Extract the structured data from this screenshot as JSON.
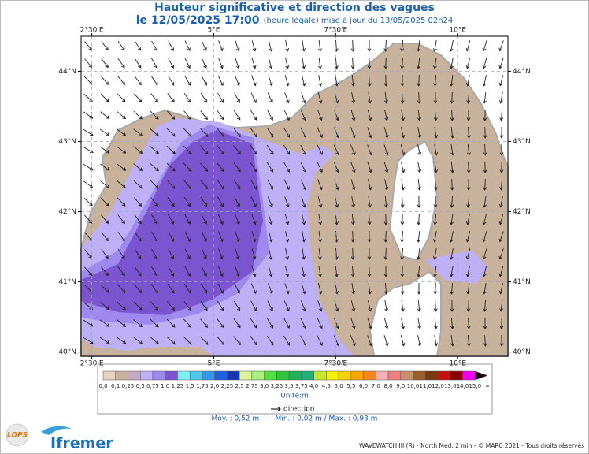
{
  "header": {
    "title": "Hauteur significative et direction des vagues",
    "date": "le 12/05/2025 17:00",
    "note": "(heure légale) mise à jour du 13/05/2025 02h24"
  },
  "map": {
    "lon_range": [
      2.28,
      11.03
    ],
    "lat_range": [
      39.94,
      44.5
    ],
    "lon_ticks": [
      {
        "value": 2.5,
        "label": "2°30'E"
      },
      {
        "value": 5,
        "label": "5°E"
      },
      {
        "value": 7.5,
        "label": "7°30'E"
      },
      {
        "value": 10,
        "label": "10°E"
      }
    ],
    "lat_ticks": [
      {
        "value": 44,
        "label": "44°N"
      },
      {
        "value": 43,
        "label": "43°N"
      },
      {
        "value": 42,
        "label": "42°N"
      },
      {
        "value": 41,
        "label": "41°N"
      },
      {
        "value": 40,
        "label": "40°N"
      }
    ]
  },
  "legend": {
    "classes": [
      "0,0",
      "0,1",
      "0,25",
      "0,5",
      "0,75",
      "1,0",
      "1,25",
      "1,5",
      "1,75",
      "2,0",
      "2,25",
      "2,5",
      "2,75",
      "3,0",
      "3,25",
      "3,5",
      "3,75",
      "4,0",
      "4,5",
      "5,0",
      "5,5",
      "6,0",
      "7,0",
      "8,0",
      "9,0",
      "10,0",
      "11,0",
      "12,0",
      "13,0",
      "14,0",
      "15,0",
      "∞"
    ],
    "colors": [
      "#e6d2bd",
      "#c9b29b",
      "#c8a9c3",
      "#bdb0f7",
      "#9f89ef",
      "#7b55d0",
      "#7ef0f5",
      "#4fc7ef",
      "#3399ea",
      "#1f5fe0",
      "#1238b8",
      "#ddf59a",
      "#aaf07a",
      "#55dd44",
      "#33c33a",
      "#1fb25a",
      "#22b07a",
      "#c5e82a",
      "#f2f200",
      "#f7d300",
      "#f7a800",
      "#f7861e",
      "#f7b3b3",
      "#f08080",
      "#c8906b",
      "#9b5e2b",
      "#7a3a10",
      "#c81010",
      "#8c0000",
      "#ee00ee",
      "#1a0010"
    ],
    "unit": "Unité:m",
    "direction": "direction"
  },
  "stats": "Moy. : 0,52 m   -   Min. : 0,02 m / Max. : 0,93 m",
  "logos": {
    "lops": "LOPS",
    "ifremer": "Ifremer"
  },
  "footer": "WAVEWATCH III (R) - North Med. 2 min - © MARC 2021 - Tous droits réservés"
}
